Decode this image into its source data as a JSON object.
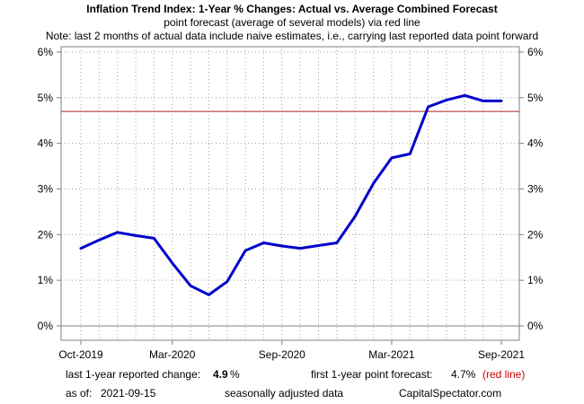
{
  "chart_data": {
    "type": "line",
    "title": "Inflation Trend Index: 1-Year % Changes: Actual vs. Average Combined Forecast",
    "subtitle": "point forecast (average of several models) via red line",
    "note": "Note: last 2 months of actual data include naive estimates, i.e., carrying last reported data point forward",
    "x_tick_labels": [
      "Oct-2019",
      "Mar-2020",
      "Sep-2020",
      "Mar-2021",
      "Sep-2021"
    ],
    "x_tick_dates": [
      "2019-10",
      "2020-03",
      "2020-09",
      "2021-03",
      "2021-09"
    ],
    "y_tick_labels": [
      "0%",
      "1%",
      "2%",
      "3%",
      "4%",
      "5%",
      "6%"
    ],
    "y_ticks": [
      0,
      1,
      2,
      3,
      4,
      5,
      6
    ],
    "ylim": [
      0,
      6
    ],
    "grid": true,
    "series": [
      {
        "color": "#0000cc",
        "dates": [
          "2019-10",
          "2019-11",
          "2019-12",
          "2020-01",
          "2020-02",
          "2020-03",
          "2020-04",
          "2020-05",
          "2020-06",
          "2020-07",
          "2020-08",
          "2020-09",
          "2020-10",
          "2020-11",
          "2020-12",
          "2021-01",
          "2021-02",
          "2021-03",
          "2021-04",
          "2021-05",
          "2021-06",
          "2021-07",
          "2021-08",
          "2021-09"
        ],
        "values": [
          1.7,
          1.88,
          2.05,
          1.98,
          1.92,
          1.38,
          0.88,
          0.68,
          0.97,
          1.65,
          1.82,
          1.75,
          1.7,
          1.76,
          1.82,
          2.4,
          3.12,
          3.68,
          3.77,
          4.8,
          4.95,
          5.05,
          4.93,
          4.93
        ]
      }
    ],
    "forecast_line": {
      "value": 4.7,
      "color": "#b22222"
    }
  },
  "footer": {
    "last_change_label": "last 1-year reported change:",
    "last_change_value": "4.9",
    "last_change_unit": "%",
    "forecast_label": "first 1-year point forecast:",
    "forecast_value": "4.7%",
    "forecast_note": "(red line)",
    "asof_label": "as of:",
    "asof_value": "2021-09-15",
    "seasonal": "seasonally adjusted data",
    "source": "CapitalSpectator.com"
  }
}
